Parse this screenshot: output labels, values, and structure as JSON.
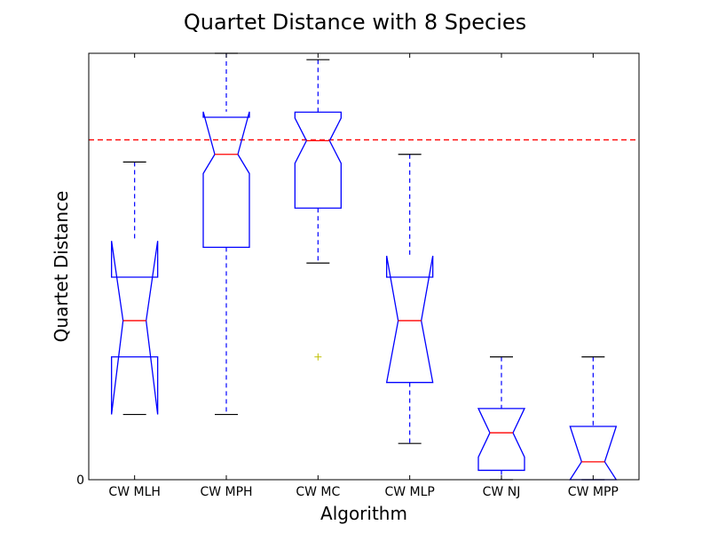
{
  "chart_data": {
    "type": "boxplot",
    "title": "Quartet Distance with 8 Species",
    "xlabel": "Algorithm",
    "ylabel": "Quartet Distance",
    "ylim": [
      0,
      1
    ],
    "y_tick_labels": [
      "0"
    ],
    "notched": true,
    "reference_line": {
      "y": 0.797,
      "color": "#ff0000",
      "style": "dashed"
    },
    "colors": {
      "box": "#0000ff",
      "median": "#ff0000",
      "whisker": "#0000ff",
      "cap": "#000000",
      "outlier": "#bfbf00",
      "reference": "#ff0000"
    },
    "categories": [
      "CW MLH",
      "CW MPH",
      "CW MC",
      "CW MLP",
      "CW NJ",
      "CW MPP"
    ],
    "boxes": [
      {
        "name": "CW MLH",
        "whisker_low": 0.153,
        "q1": 0.288,
        "median": 0.373,
        "q3": 0.475,
        "whisker_high": 0.745,
        "notch_low": 0.153,
        "notch_high": 0.56,
        "outliers": []
      },
      {
        "name": "CW MPH",
        "whisker_low": 0.153,
        "q1": 0.545,
        "median": 0.763,
        "q3": 0.85,
        "whisker_high": 1.0,
        "notch_low": 0.718,
        "notch_high": 0.863,
        "outliers": []
      },
      {
        "name": "CW MC",
        "whisker_low": 0.508,
        "q1": 0.637,
        "median": 0.795,
        "q3": 0.862,
        "whisker_high": 0.985,
        "notch_low": 0.742,
        "notch_high": 0.848,
        "outliers": [
          0.288
        ]
      },
      {
        "name": "CW MLP",
        "whisker_low": 0.085,
        "q1": 0.228,
        "median": 0.373,
        "q3": 0.475,
        "whisker_high": 0.763,
        "notch_low": 0.228,
        "notch_high": 0.525,
        "outliers": []
      },
      {
        "name": "CW NJ",
        "whisker_low": 0.0,
        "q1": 0.022,
        "median": 0.11,
        "q3": 0.167,
        "whisker_high": 0.288,
        "notch_low": 0.053,
        "notch_high": 0.167,
        "outliers": []
      },
      {
        "name": "CW MPP",
        "whisker_low": 0.0,
        "q1": 0.0,
        "median": 0.042,
        "q3": 0.125,
        "whisker_high": 0.288,
        "notch_low": 0.0,
        "notch_high": 0.125,
        "outliers": []
      }
    ]
  }
}
